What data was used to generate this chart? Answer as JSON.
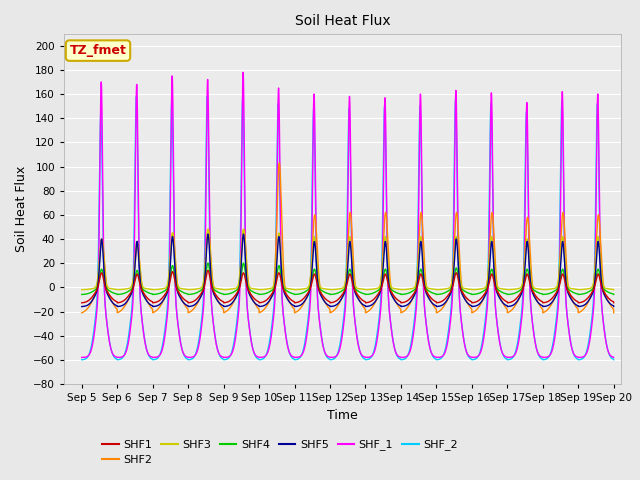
{
  "title": "Soil Heat Flux",
  "xlabel": "Time",
  "ylabel": "Soil Heat Flux",
  "xlim_days": [
    4.5,
    20.2
  ],
  "ylim": [
    -80,
    210
  ],
  "yticks": [
    -80,
    -60,
    -40,
    -20,
    0,
    20,
    40,
    60,
    80,
    100,
    120,
    140,
    160,
    180,
    200
  ],
  "xtick_labels": [
    "Sep 5",
    "Sep 6",
    "Sep 7",
    "Sep 8",
    "Sep 9",
    "Sep 10",
    "Sep 11",
    "Sep 12",
    "Sep 13",
    "Sep 14",
    "Sep 15",
    "Sep 16",
    "Sep 17",
    "Sep 18",
    "Sep 19",
    "Sep 20"
  ],
  "xtick_days": [
    5,
    6,
    7,
    8,
    9,
    10,
    11,
    12,
    13,
    14,
    15,
    16,
    17,
    18,
    19,
    20
  ],
  "series": {
    "SHF1": {
      "color": "#cc0000",
      "peaks": [
        12,
        11,
        13,
        14,
        12,
        12,
        11,
        11,
        11,
        11,
        12,
        11,
        11,
        11,
        11
      ],
      "trough": -13,
      "pw": 0.055,
      "pp": 0.56
    },
    "SHF2": {
      "color": "#ff8800",
      "peaks": [
        40,
        35,
        45,
        48,
        48,
        103,
        60,
        62,
        62,
        62,
        62,
        62,
        58,
        62,
        60
      ],
      "trough": -22,
      "pw": 0.065,
      "pp": 0.57
    },
    "SHF3": {
      "color": "#cccc00",
      "peaks": [
        40,
        38,
        45,
        48,
        48,
        45,
        42,
        42,
        42,
        42,
        42,
        42,
        40,
        42,
        42
      ],
      "trough": -2,
      "pw": 0.06,
      "pp": 0.56
    },
    "SHF4": {
      "color": "#00cc00",
      "peaks": [
        15,
        14,
        18,
        20,
        20,
        18,
        15,
        15,
        15,
        15,
        16,
        15,
        15,
        15,
        15
      ],
      "trough": -6,
      "pw": 0.055,
      "pp": 0.56
    },
    "SHF5": {
      "color": "#000099",
      "peaks": [
        40,
        38,
        42,
        44,
        44,
        42,
        38,
        38,
        38,
        38,
        40,
        38,
        38,
        38,
        38
      ],
      "trough": -16,
      "pw": 0.05,
      "pp": 0.56
    },
    "SHF_1": {
      "color": "#ff00ff",
      "peaks": [
        170,
        168,
        175,
        172,
        178,
        165,
        160,
        158,
        157,
        160,
        163,
        161,
        153,
        162,
        160
      ],
      "trough": -58,
      "pw": 0.038,
      "pp": 0.55
    },
    "SHF_2": {
      "color": "#00ccff",
      "peaks": [
        145,
        158,
        155,
        158,
        158,
        152,
        148,
        148,
        150,
        150,
        155,
        152,
        145,
        155,
        152
      ],
      "trough": -60,
      "pw": 0.042,
      "pp": 0.54
    }
  },
  "annotation_text": "TZ_fmet",
  "annotation_color": "#cc0000",
  "annotation_bg": "#ffffcc",
  "annotation_border": "#ccaa00",
  "bg_color": "#e8e8e8",
  "plot_bg": "#ebebeb",
  "grid_color": "#ffffff",
  "figsize": [
    6.4,
    4.8
  ],
  "dpi": 100
}
